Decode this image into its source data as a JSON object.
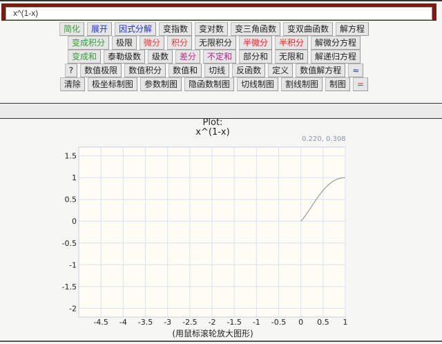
{
  "input": {
    "value": "x^(1-x)"
  },
  "toolbar": {
    "rows": [
      [
        {
          "label": "简化",
          "color": "#3a9a3a"
        },
        {
          "label": "展开",
          "color": "#2233cc"
        },
        {
          "label": "因式分解",
          "color": "#2233cc"
        },
        {
          "label": "变指数",
          "color": "#222"
        },
        {
          "label": "变对数",
          "color": "#222"
        },
        {
          "label": "变三角函数",
          "color": "#222"
        },
        {
          "label": "变双曲函数",
          "color": "#222"
        },
        {
          "label": "解方程",
          "color": "#222"
        }
      ],
      [
        {
          "label": "变成积分",
          "color": "#3a9a3a"
        },
        {
          "label": "极限",
          "color": "#222"
        },
        {
          "label": "微分",
          "color": "#e83a3a"
        },
        {
          "label": "积分",
          "color": "#e83a3a"
        },
        {
          "label": "无限积分",
          "color": "#222"
        },
        {
          "label": "半微分",
          "color": "#ee2222"
        },
        {
          "label": "半积分",
          "color": "#ee2222"
        },
        {
          "label": "解微分方程",
          "color": "#222"
        }
      ],
      [
        {
          "label": "变成和",
          "color": "#3a9a3a"
        },
        {
          "label": "泰勒级数",
          "color": "#222"
        },
        {
          "label": "级数",
          "color": "#222"
        },
        {
          "label": "差分",
          "color": "#c0308a"
        },
        {
          "label": "不定和",
          "color": "#b0208a"
        },
        {
          "label": "部分和",
          "color": "#222"
        },
        {
          "label": "无限和",
          "color": "#222"
        },
        {
          "label": "解递归方程",
          "color": "#222"
        }
      ],
      [
        {
          "label": "?",
          "color": "#222"
        },
        {
          "label": "数值极限",
          "color": "#222"
        },
        {
          "label": "数值积分",
          "color": "#222"
        },
        {
          "label": "数值和",
          "color": "#222"
        },
        {
          "label": "切线",
          "color": "#222"
        },
        {
          "label": "反函数",
          "color": "#222"
        },
        {
          "label": "定义",
          "color": "#222"
        },
        {
          "label": "数值解方程",
          "color": "#222"
        },
        {
          "label": "≈",
          "color": "#2233cc"
        }
      ],
      [
        {
          "label": "清除",
          "color": "#222"
        },
        {
          "label": "极坐标制图",
          "color": "#222"
        },
        {
          "label": "参数制图",
          "color": "#222"
        },
        {
          "label": "隐函数制图",
          "color": "#222"
        },
        {
          "label": "切线制图",
          "color": "#222"
        },
        {
          "label": "割线制图",
          "color": "#222"
        },
        {
          "label": "制图",
          "color": "#222"
        },
        {
          "label": "=",
          "color": "#ee2222"
        }
      ]
    ]
  },
  "plot": {
    "title_line1": "Plot:",
    "title_line2": "x^(1-x)",
    "coord_readout": "0.220, 0.308",
    "hint": "(用鼠标滚轮放大图形)"
  },
  "chart_data": {
    "type": "line",
    "function": "x^(1-x)",
    "xlim": [
      -5,
      1
    ],
    "ylim": [
      -2.2,
      1.7
    ],
    "x_ticks": [
      "-4.5",
      "-4",
      "-3.5",
      "-3",
      "-2.5",
      "-2",
      "-1.5",
      "-1",
      "-0.5",
      "0",
      "0.5",
      "1"
    ],
    "y_ticks": [
      "1.5",
      "1",
      "0.5",
      "0",
      "-0.5",
      "-1",
      "-1.5",
      "-2"
    ],
    "grid": true,
    "line_color": "#999999"
  }
}
